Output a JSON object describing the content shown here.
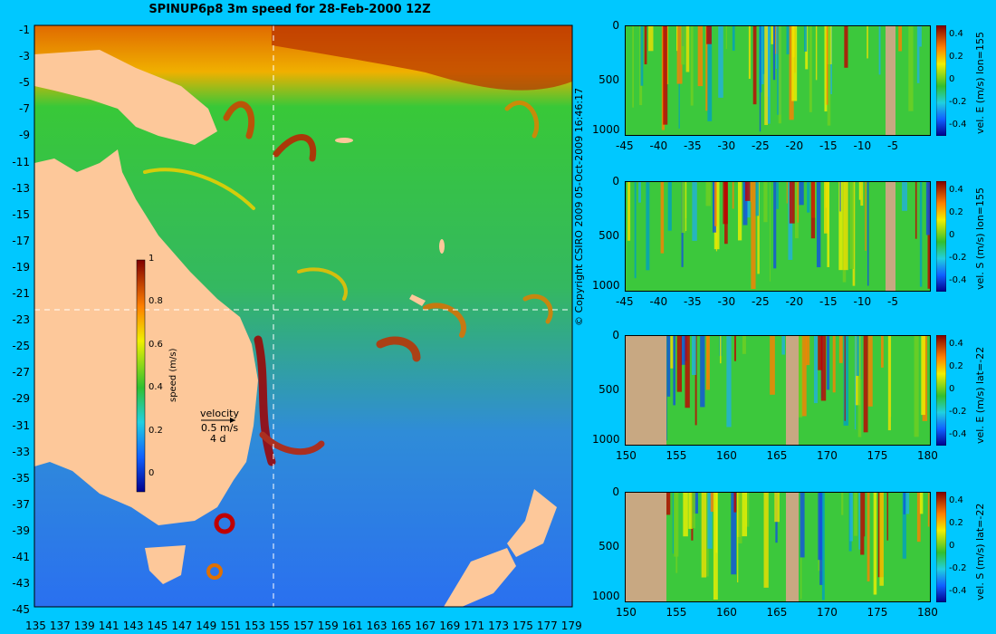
{
  "title": "SPINUP6p8 3m speed for 28-Feb-2000 12Z",
  "copyright": "© Copyright CSIRO 2009  05-Oct-2009 16:46:17",
  "map": {
    "lat_ticks": [
      "-1",
      "-3",
      "-5",
      "-7",
      "-9",
      "-11",
      "-13",
      "-15",
      "-17",
      "-19",
      "-21",
      "-23",
      "-25",
      "-27",
      "-29",
      "-31",
      "-33",
      "-35",
      "-37",
      "-39",
      "-41",
      "-43",
      "-45"
    ],
    "lon_ticks": [
      "135",
      "137",
      "139",
      "141",
      "143",
      "145",
      "147",
      "149",
      "151",
      "153",
      "155",
      "157",
      "159",
      "161",
      "163",
      "165",
      "167",
      "169",
      "171",
      "173",
      "175",
      "177",
      "179"
    ],
    "colorbar": {
      "label": "speed (m/s)",
      "ticks": [
        "1",
        "0.8",
        "0.6",
        "0.4",
        "0.2",
        "0"
      ]
    },
    "velocity_legend": {
      "title": "velocity",
      "speed": "0.5 m/s",
      "duration": "4 d"
    },
    "colors": {
      "land": "#fdc89a",
      "ocean_low": "#1e64ff",
      "ocean_mid": "#22c43a",
      "high": "#a01000"
    }
  },
  "panels": [
    {
      "label": "vel. E (m/s) lon=155",
      "x_ticks": [
        "-45",
        "-40",
        "-35",
        "-30",
        "-25",
        "-20",
        "-15",
        "-10",
        "-5"
      ],
      "y_ticks": [
        "0",
        "500",
        "1000"
      ],
      "cb_ticks": [
        "0.4",
        "0.2",
        "0",
        "-0.2",
        "-0.4"
      ]
    },
    {
      "label": "vel. S (m/s) lon=155",
      "x_ticks": [
        "-45",
        "-40",
        "-35",
        "-30",
        "-25",
        "-20",
        "-15",
        "-10",
        "-5"
      ],
      "y_ticks": [
        "0",
        "500",
        "1000"
      ],
      "cb_ticks": [
        "0.4",
        "0.2",
        "0",
        "-0.2",
        "-0.4"
      ]
    },
    {
      "label": "vel. E (m/s) lat=-22",
      "x_ticks": [
        "150",
        "155",
        "160",
        "165",
        "170",
        "175",
        "180"
      ],
      "y_ticks": [
        "0",
        "500",
        "1000"
      ],
      "cb_ticks": [
        "0.4",
        "0.2",
        "0",
        "-0.2",
        "-0.4"
      ]
    },
    {
      "label": "vel. S (m/s) lat=-22",
      "x_ticks": [
        "150",
        "155",
        "160",
        "165",
        "170",
        "175",
        "180"
      ],
      "y_ticks": [
        "0",
        "500",
        "1000"
      ],
      "cb_ticks": [
        "0.4",
        "0.2",
        "0",
        "-0.2",
        "-0.4"
      ]
    }
  ]
}
